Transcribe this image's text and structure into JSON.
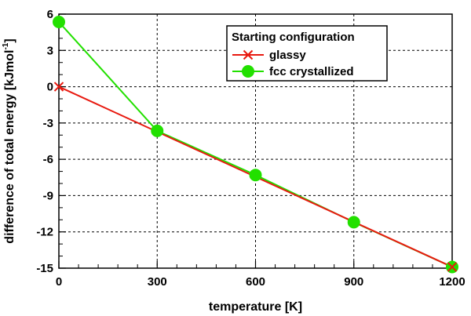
{
  "chart_data": {
    "type": "line",
    "title": "",
    "xlabel": "temperature [K]",
    "ylabel_main": "difference of total energy [kJmol",
    "ylabel_sup": "-1",
    "ylabel_end": "]",
    "xlim": [
      0,
      1200
    ],
    "ylim": [
      -15,
      6
    ],
    "xticks": [
      0,
      300,
      600,
      900,
      1200
    ],
    "yticks": [
      -15,
      -12,
      -9,
      -6,
      -3,
      0,
      3,
      6
    ],
    "grid": true,
    "legend": {
      "title": "Starting configuration",
      "placement": "top-right"
    },
    "series": [
      {
        "name": "glassy",
        "color": "#e8190f",
        "marker": "x",
        "x": [
          0,
          1200
        ],
        "y": [
          0,
          -14.9
        ]
      },
      {
        "name": "fcc crystallized",
        "color": "#22e000",
        "marker": "circle",
        "x": [
          0,
          300,
          600,
          900,
          1200
        ],
        "y": [
          5.35,
          -3.65,
          -7.3,
          -11.2,
          -14.9
        ]
      }
    ]
  }
}
